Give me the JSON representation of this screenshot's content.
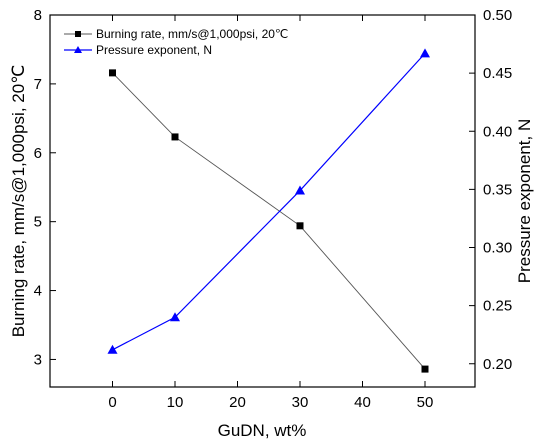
{
  "chart_data": {
    "type": "line",
    "title": "",
    "xlabel": "GuDN, wt%",
    "ylabel_left": "Burning rate, mm/s@1,000psi, 20℃",
    "ylabel_right": "Pressure exponent, N",
    "xlim": [
      -10,
      58
    ],
    "ylim_left": [
      2.6,
      8
    ],
    "ylim_right": [
      0.18,
      0.5
    ],
    "x_ticks": [
      0,
      10,
      20,
      30,
      40,
      50
    ],
    "y_left_ticks": [
      3,
      4,
      5,
      6,
      7,
      8
    ],
    "y_right_ticks": [
      "0.20",
      "0.25",
      "0.30",
      "0.35",
      "0.40",
      "0.45",
      "0.50"
    ],
    "legend_position": "top-left",
    "series": [
      {
        "name": "Burning rate, mm/s@1,000psi, 20℃",
        "axis": "left",
        "marker": "square",
        "color": "#555555",
        "marker_color": "#000000",
        "x": [
          0,
          10,
          30,
          50
        ],
        "y": [
          7.16,
          6.23,
          4.94,
          2.86
        ]
      },
      {
        "name": "Pressure exponent, N",
        "axis": "right",
        "marker": "triangle",
        "color": "#0000ff",
        "marker_color": "#0000ff",
        "x": [
          0,
          10,
          30,
          50
        ],
        "y": [
          0.212,
          0.24,
          0.349,
          0.467
        ]
      }
    ]
  }
}
